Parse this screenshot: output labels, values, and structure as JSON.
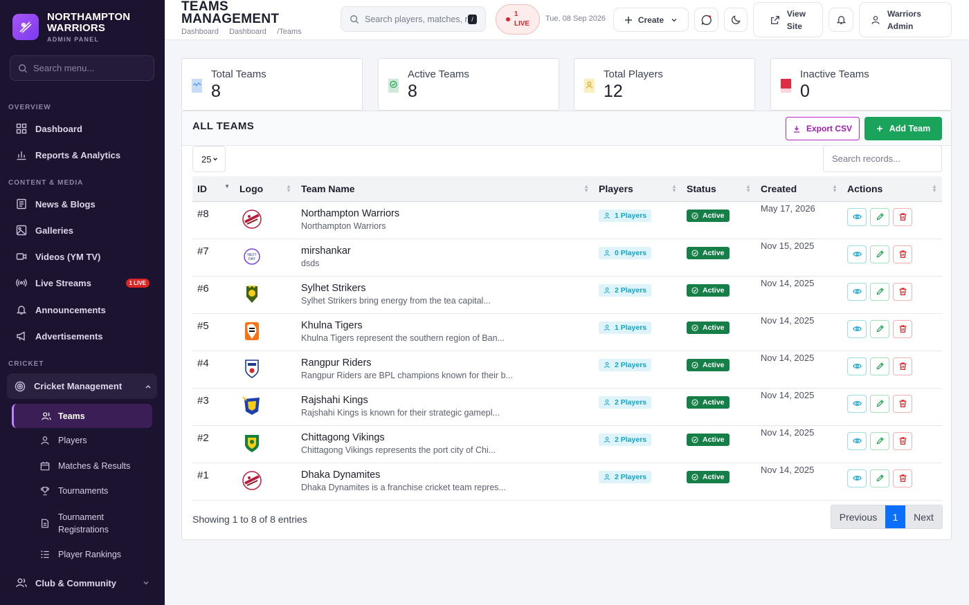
{
  "brand": {
    "name_line1": "NORTHAMPTON",
    "name_line2": "WARRIORS",
    "subtitle": "ADMIN PANEL"
  },
  "sidebar": {
    "search_placeholder": "Search menu...",
    "sections": [
      "OVERVIEW",
      "CONTENT & MEDIA",
      "CRICKET"
    ],
    "items": [
      {
        "label": "Dashboard",
        "icon": "dashboard-icon"
      },
      {
        "label": "Reports & Analytics",
        "icon": "bar-chart-icon"
      },
      {
        "label": "News & Blogs",
        "icon": "newspaper-icon"
      },
      {
        "label": "Galleries",
        "icon": "image-icon"
      },
      {
        "label": "Videos (YM TV)",
        "icon": "video-icon"
      },
      {
        "label": "Live Streams",
        "icon": "broadcast-icon",
        "badge": "1 LIVE"
      },
      {
        "label": "Announcements",
        "icon": "bell-icon"
      },
      {
        "label": "Advertisements",
        "icon": "megaphone-icon"
      },
      {
        "label": "Cricket Management",
        "icon": "target-icon"
      },
      {
        "label": "Club & Community",
        "icon": "users-icon"
      }
    ],
    "cricket_sub": [
      {
        "label": "Teams",
        "icon": "users-icon",
        "active": true
      },
      {
        "label": "Players",
        "icon": "user-icon"
      },
      {
        "label": "Matches & Results",
        "icon": "calendar-icon"
      },
      {
        "label": "Tournaments",
        "icon": "trophy-icon"
      },
      {
        "label": "Tournament",
        "label2": "Registrations",
        "icon": "document-icon"
      },
      {
        "label": "Player Rankings",
        "icon": "list-icon"
      }
    ]
  },
  "header": {
    "title_line1": "TEAMS",
    "title_line2": "MANAGEMENT",
    "breadcrumb": "Dashboard     Dashboard     /Teams",
    "search_placeholder": "Search players, matches, r",
    "search_shortcut": "/",
    "live_count": "1",
    "live_label": "LIVE",
    "date": "Tue, 08 Sep 2026",
    "create_label": "Create",
    "view_site_line1": "View",
    "view_site_line2": "Site",
    "user_line1": "Warriors",
    "user_line2": "Admin"
  },
  "stats": [
    {
      "label": "Total Teams",
      "value": "8",
      "color": "#c7dcf7"
    },
    {
      "label": "Active Teams",
      "value": "8",
      "color": "#cfead8"
    },
    {
      "label": "Total Players",
      "value": "12",
      "color": "#fbefc0"
    },
    {
      "label": "Inactive Teams",
      "value": "0",
      "color": "#dc2f43"
    }
  ],
  "panel": {
    "title": "ALL TEAMS",
    "export_label": "Export CSV",
    "add_label": "Add Team",
    "page_length": "25",
    "search_placeholder": "Search records...",
    "columns": [
      "ID",
      "Logo",
      "Team Name",
      "Players",
      "Status",
      "Created",
      "Actions"
    ],
    "rows": [
      {
        "id": "#8",
        "name": "Northampton Warriors",
        "desc": "Northampton Warriors",
        "players": "1 Players",
        "status": "Active",
        "created": "May 17, 2026",
        "logo": "warriors"
      },
      {
        "id": "#7",
        "name": "mirshankar",
        "desc": "dsds",
        "players": "0 Players",
        "status": "Active",
        "created": "Nov 15, 2025",
        "logo": "nextday"
      },
      {
        "id": "#6",
        "name": "Sylhet Strikers",
        "desc": "Sylhet Strikers bring energy from the tea capital...",
        "players": "2 Players",
        "status": "Active",
        "created": "Nov 14, 2025",
        "logo": "sylhet"
      },
      {
        "id": "#5",
        "name": "Khulna Tigers",
        "desc": "Khulna Tigers represent the southern region of Ban...",
        "players": "1 Players",
        "status": "Active",
        "created": "Nov 14, 2025",
        "logo": "khulna"
      },
      {
        "id": "#4",
        "name": "Rangpur Riders",
        "desc": "Rangpur Riders are BPL champions known for their b...",
        "players": "2 Players",
        "status": "Active",
        "created": "Nov 14, 2025",
        "logo": "rangpur"
      },
      {
        "id": "#3",
        "name": "Rajshahi Kings",
        "desc": "Rajshahi Kings is known for their strategic gamepl...",
        "players": "2 Players",
        "status": "Active",
        "created": "Nov 14, 2025",
        "logo": "rajshahi"
      },
      {
        "id": "#2",
        "name": "Chittagong Vikings",
        "desc": "Chittagong Vikings represents the port city of Chi...",
        "players": "2 Players",
        "status": "Active",
        "created": "Nov 14, 2025",
        "logo": "chittagong"
      },
      {
        "id": "#1",
        "name": "Dhaka Dynamites",
        "desc": "Dhaka Dynamites is a franchise cricket team repres...",
        "players": "2 Players",
        "status": "Active",
        "created": "Nov 14, 2025",
        "logo": "warriors"
      }
    ],
    "info": "Showing 1 to 8 of 8 entries",
    "pager": {
      "prev": "Previous",
      "current": "1",
      "next": "Next"
    }
  }
}
